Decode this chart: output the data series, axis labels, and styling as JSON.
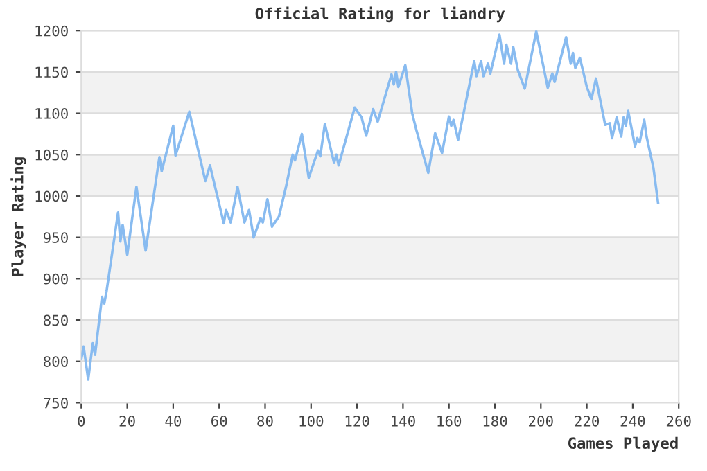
{
  "chart_data": {
    "type": "line",
    "title": "Official Rating for liandry",
    "xlabel": "Games Played",
    "ylabel": "Player Rating",
    "series": [
      {
        "color": "#88bbf0",
        "x": [
          0,
          1,
          3,
          5,
          6,
          9,
          10,
          11,
          16,
          17,
          18,
          20,
          24,
          28,
          34,
          35,
          40,
          41,
          47,
          54,
          56,
          62,
          63,
          65,
          68,
          71,
          73,
          75,
          78,
          79,
          81,
          83,
          86,
          89,
          92,
          93,
          96,
          99,
          103,
          104,
          106,
          110,
          111,
          112,
          119,
          122,
          124,
          127,
          129,
          135,
          136,
          137,
          138,
          141,
          144,
          146,
          151,
          154,
          157,
          160,
          161,
          162,
          164,
          171,
          172,
          174,
          175,
          177,
          178,
          182,
          184,
          185,
          187,
          188,
          190,
          193,
          198,
          203,
          205,
          206,
          211,
          213,
          214,
          215,
          217,
          220,
          222,
          224,
          228,
          230,
          231,
          233,
          235,
          236,
          237,
          238,
          241,
          242,
          243,
          245,
          246,
          249,
          251
        ],
        "values": [
          803,
          818,
          778,
          822,
          808,
          878,
          870,
          885,
          980,
          945,
          965,
          929,
          1011,
          934,
          1047,
          1030,
          1085,
          1049,
          1102,
          1018,
          1037,
          967,
          983,
          968,
          1011,
          968,
          983,
          950,
          973,
          968,
          996,
          963,
          975,
          1010,
          1050,
          1043,
          1075,
          1022,
          1055,
          1048,
          1087,
          1040,
          1050,
          1037,
          1107,
          1095,
          1073,
          1105,
          1090,
          1147,
          1135,
          1150,
          1132,
          1158,
          1100,
          1078,
          1028,
          1076,
          1052,
          1096,
          1085,
          1092,
          1068,
          1163,
          1145,
          1163,
          1145,
          1160,
          1148,
          1195,
          1160,
          1183,
          1160,
          1180,
          1152,
          1130,
          1199,
          1131,
          1148,
          1138,
          1192,
          1160,
          1173,
          1155,
          1167,
          1132,
          1117,
          1142,
          1086,
          1088,
          1070,
          1095,
          1072,
          1095,
          1085,
          1103,
          1060,
          1070,
          1065,
          1092,
          1072,
          1034,
          992
        ]
      }
    ],
    "xlim": [
      0,
      260
    ],
    "xticks": [
      0,
      20,
      40,
      60,
      80,
      100,
      120,
      140,
      160,
      180,
      200,
      220,
      240,
      260
    ],
    "ylim": [
      750,
      1200
    ],
    "yticks": [
      750,
      800,
      850,
      900,
      950,
      1000,
      1050,
      1100,
      1150,
      1200
    ],
    "grid": "y",
    "line_style": "solid",
    "bands": [
      {
        "axis": "y",
        "from": 800,
        "to": 850,
        "color": "#f2f2f2"
      },
      {
        "axis": "y",
        "from": 900,
        "to": 950,
        "color": "#f2f2f2"
      },
      {
        "axis": "y",
        "from": 1000,
        "to": 1050,
        "color": "#f2f2f2"
      },
      {
        "axis": "y",
        "from": 1100,
        "to": 1150,
        "color": "#f2f2f2"
      }
    ]
  }
}
